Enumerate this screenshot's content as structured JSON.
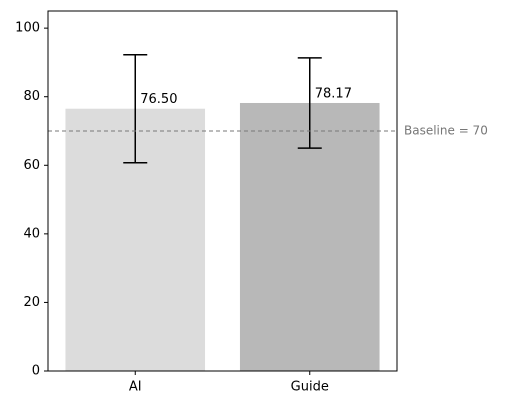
{
  "chart_data": {
    "type": "bar",
    "categories": [
      "AI",
      "Guide"
    ],
    "values": [
      76.5,
      78.17
    ],
    "value_labels": [
      "76.50",
      "78.17"
    ],
    "errors": [
      15.75,
      13.15
    ],
    "colors": [
      "#dcdcdc",
      "#b8b8b8"
    ],
    "ylim": [
      0,
      105
    ],
    "yticks": [
      0,
      20,
      40,
      60,
      80,
      100
    ],
    "baseline": {
      "value": 70,
      "label": "Baseline = 70"
    }
  }
}
